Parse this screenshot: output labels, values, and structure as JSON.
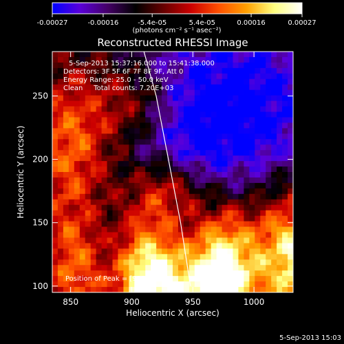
{
  "chart_data": {
    "type": "heatmap",
    "title": "Reconstructed RHESSI Image",
    "xlabel": "Heliocentric X (arcsec)",
    "ylabel": "Heliocentric Y (arcsec)",
    "xlim": [
      835,
      1032
    ],
    "ylim": [
      95,
      285
    ],
    "xticks": [
      850,
      900,
      950,
      1000
    ],
    "yticks": [
      100,
      150,
      200,
      250
    ],
    "grid": false,
    "colorbar": {
      "min": -0.00027,
      "max": 0.00027,
      "tick_values": [
        -0.00027,
        -0.00016,
        -5.4e-05,
        5.4e-05,
        0.00016,
        0.00027
      ],
      "tick_labels": [
        "-0.00027",
        "-0.00016",
        "-5.4e-05",
        "5.4e-05",
        "0.00016",
        "0.00027"
      ],
      "label": "(photons cm⁻² s⁻¹ asec⁻²)",
      "stops": [
        "#0000ff",
        "#5a00d8",
        "#440066",
        "#000000",
        "#660000",
        "#cc0000",
        "#ff5000",
        "#ffa000",
        "#ffff80",
        "#ffffff"
      ]
    },
    "annotations": {
      "time": "5-Sep-2013 15:37:16.000 to 15:41:38.000",
      "detectors": "Detectors: 3F 5F 6F 7F 8F 9F, Att 0",
      "energy": "Energy Range: 25.0 - 50.0 keV",
      "clean": "Clean     Total counts: 7.20E+03",
      "peak": "Position of Peak = [937,102]"
    },
    "limb_curve": {
      "x": [
        910,
        920,
        930,
        940,
        948
      ],
      "y": [
        285,
        250,
        200,
        150,
        100
      ]
    },
    "peak": [
      937,
      102
    ]
  },
  "footer_timestamp": "5-Sep-2013 15:03"
}
